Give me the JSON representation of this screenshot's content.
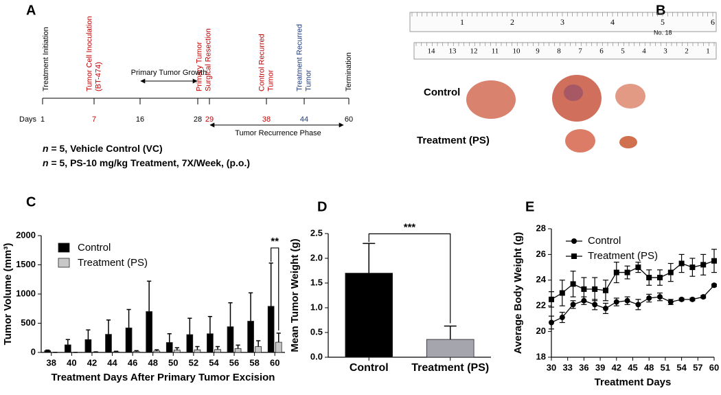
{
  "panel_a": {
    "letter": "A",
    "events": [
      {
        "label": [
          "Treatment Initiation"
        ],
        "color": "#000000"
      },
      {
        "label": [
          "Tumor Cell Inoculation",
          "(BT-474)"
        ],
        "color": "#c00000"
      },
      {
        "label": [
          "Primary Tumor",
          "Surgical Resection"
        ],
        "color": "#c00000"
      },
      {
        "label": [
          "Control Recurred",
          "Tumor"
        ],
        "color": "#c00000"
      },
      {
        "label": [
          "Treatment Recurred",
          "Tumor"
        ],
        "color": "#1f3a7a"
      },
      {
        "label": [
          "Termination"
        ],
        "color": "#000000"
      }
    ],
    "days_label": "Days",
    "days": [
      1,
      7,
      16,
      28,
      29,
      38,
      44,
      60
    ],
    "day_colors": [
      "#000000",
      "#c00000",
      "#000000",
      "#000000",
      "#c00000",
      "#c00000",
      "#1f3a7a",
      "#000000"
    ],
    "growth_label": "Primary Tumor Growth",
    "recurrence_label": "Tumor Recurrence Phase",
    "notes": [
      {
        "italic": "n",
        "text": " = 5, Vehicle Control (VC)"
      },
      {
        "italic": "n",
        "text": " = 5, PS-10 mg/kg Treatment, 7X/Week, (p.o.)"
      }
    ]
  },
  "panel_b": {
    "letter": "B",
    "ruler_top": [
      1,
      2,
      3,
      4,
      5,
      6
    ],
    "ruler_model": "No. 18",
    "ruler_bottom": [
      14,
      13,
      12,
      11,
      10,
      9,
      8,
      7,
      6,
      5,
      4,
      3,
      2,
      1
    ],
    "rows": [
      "Control",
      "Treatment (PS)"
    ]
  },
  "chart_data": [
    {
      "letter": "C",
      "type": "bar",
      "categories": [
        38,
        40,
        42,
        44,
        46,
        48,
        50,
        52,
        54,
        56,
        58,
        60
      ],
      "series": [
        {
          "name": "Control",
          "color": "#000000",
          "values": [
            30,
            130,
            220,
            310,
            420,
            700,
            170,
            305,
            320,
            440,
            535,
            790
          ],
          "errors": [
            10,
            90,
            165,
            245,
            315,
            520,
            150,
            280,
            295,
            410,
            485,
            740
          ]
        },
        {
          "name": "Treatment (PS)",
          "color": "#c8c8c8",
          "values": [
            0,
            0,
            5,
            10,
            15,
            25,
            40,
            45,
            50,
            65,
            100,
            175
          ],
          "errors": [
            0,
            0,
            5,
            10,
            15,
            20,
            40,
            55,
            50,
            60,
            100,
            155
          ]
        }
      ],
      "ylim": [
        0,
        2000
      ],
      "yticks": [
        0,
        500,
        1000,
        1500,
        2000
      ],
      "y_label": "Tumor Volume (mm³)",
      "x_label": "Treatment Days After Primary Tumor Excision",
      "legend": "upper left",
      "annotation": "**"
    },
    {
      "letter": "D",
      "type": "bar",
      "categories": [
        "Control",
        "Treatment (PS)"
      ],
      "values": [
        1.7,
        0.36
      ],
      "errors": [
        0.6,
        0.27
      ],
      "colors": [
        "#000000",
        "#a5a5ad"
      ],
      "ylim": [
        0,
        2.5
      ],
      "yticks": [
        {
          "value": 0,
          "label": "0.0"
        },
        0.5,
        {
          "value": 1,
          "label": "1.0"
        },
        1.5,
        {
          "value": 2,
          "label": "2.0"
        },
        2.5
      ],
      "y_label": "Mean Tumor Weight (g)",
      "annotation": "***"
    },
    {
      "letter": "E",
      "type": "line",
      "x": [
        30,
        32,
        34,
        36,
        38,
        40,
        42,
        44,
        46,
        48,
        50,
        52,
        54,
        56,
        58,
        60
      ],
      "series": [
        {
          "name": "Control",
          "color": "#000000",
          "marker": "circle",
          "values": [
            20.7,
            21.1,
            22.1,
            22.4,
            22.1,
            21.8,
            22.3,
            22.4,
            22.1,
            22.6,
            22.7,
            22.3,
            22.5,
            22.5,
            22.7,
            23.6
          ],
          "errors": [
            0.5,
            0.4,
            0.3,
            0.3,
            0.4,
            0.4,
            0.3,
            0.3,
            0.4,
            0.3,
            0.3,
            0.2,
            0.1,
            0.1,
            0.1,
            0.1
          ]
        },
        {
          "name": "Treatment (PS)",
          "color": "#000000",
          "marker": "square",
          "values": [
            22.5,
            23.0,
            23.7,
            23.3,
            23.3,
            23.2,
            24.6,
            24.6,
            25.0,
            24.2,
            24.2,
            24.6,
            25.3,
            25.0,
            25.2,
            25.5
          ],
          "errors": [
            0.6,
            1.0,
            1.0,
            0.9,
            0.9,
            0.8,
            0.8,
            0.5,
            0.4,
            0.6,
            0.6,
            0.7,
            0.7,
            0.7,
            0.8,
            0.9
          ]
        }
      ],
      "xlim": [
        30,
        60
      ],
      "xticks": [
        30,
        33,
        36,
        39,
        42,
        45,
        48,
        51,
        54,
        57,
        60
      ],
      "ylim": [
        18,
        28
      ],
      "yticks": [
        18,
        20,
        22,
        24,
        26,
        28
      ],
      "x_label": "Treatment Days",
      "y_label": "Average Body Weight (g)",
      "legend": "upper left"
    }
  ]
}
